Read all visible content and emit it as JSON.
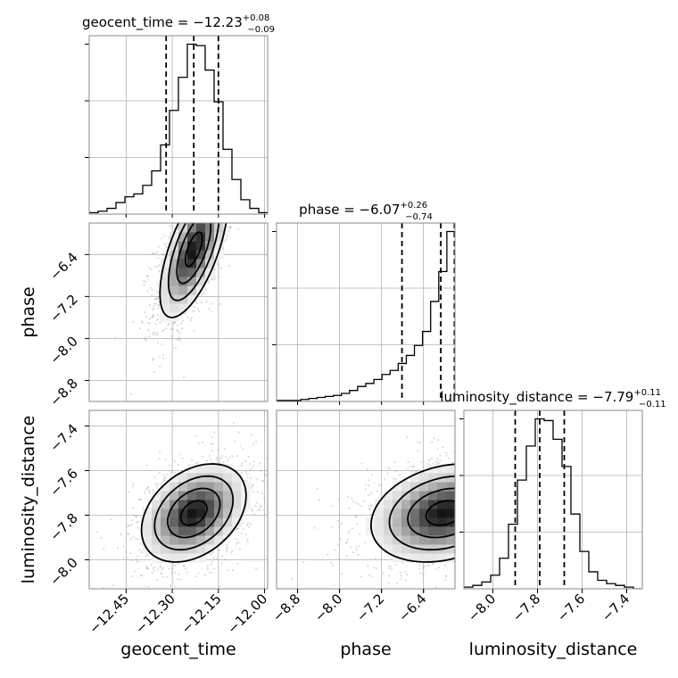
{
  "chart_data": {
    "type": "corner",
    "parameters": [
      {
        "name": "geocent_time",
        "median": -12.23,
        "plus": "+0.08",
        "minus": "−0.09",
        "median_label": "−12.23",
        "range": [
          -12.57,
          -11.99
        ],
        "ticks": [
          -12.45,
          -12.3,
          -12.15,
          -12.0
        ],
        "tick_labels": [
          "−12.45",
          "−12.30",
          "−12.15",
          "−12.00"
        ],
        "quantiles": [
          -12.32,
          -12.23,
          -12.15
        ]
      },
      {
        "name": "phase",
        "median": -6.07,
        "plus": "+0.26",
        "minus": "−0.74",
        "median_label": "−6.07",
        "range": [
          -9.2,
          -5.8
        ],
        "ticks": [
          -8.8,
          -8.0,
          -7.2,
          -6.4
        ],
        "tick_labels": [
          "−8.8",
          "−8.0",
          "−7.2",
          "−6.4"
        ],
        "quantiles": [
          -6.81,
          -6.07,
          -5.81
        ]
      },
      {
        "name": "luminosity_distance",
        "median": -7.79,
        "plus": "+0.11",
        "minus": "−0.11",
        "median_label": "−7.79",
        "range": [
          -8.13,
          -7.33
        ],
        "ticks": [
          -8.0,
          -7.8,
          -7.6,
          -7.4
        ],
        "tick_labels": [
          "−8.0",
          "−7.8",
          "−7.6",
          "−7.4"
        ],
        "quantiles": [
          -7.9,
          -7.79,
          -7.68
        ]
      }
    ],
    "histograms": [
      {
        "param": "geocent_time",
        "bin_edges_range": [
          -12.57,
          -11.99
        ],
        "bin_count": 20,
        "counts": [
          1,
          2,
          4,
          8,
          12,
          14,
          20,
          30,
          48,
          72,
          95,
          118,
          117,
          100,
          78,
          45,
          24,
          10,
          4,
          1
        ]
      },
      {
        "param": "phase",
        "bin_edges_range": [
          -9.2,
          -5.8
        ],
        "bin_count": 22,
        "counts": [
          1,
          1,
          1,
          2,
          3,
          4,
          5,
          6,
          8,
          11,
          15,
          18,
          22,
          27,
          31,
          38,
          46,
          56,
          70,
          100,
          130,
          170
        ]
      },
      {
        "param": "luminosity_distance",
        "bin_edges_range": [
          -8.13,
          -7.33
        ],
        "bin_count": 20,
        "counts": [
          1,
          2,
          4,
          8,
          18,
          38,
          64,
          84,
          100,
          99,
          88,
          72,
          44,
          22,
          10,
          5,
          3,
          2,
          1,
          0
        ]
      }
    ],
    "joint_panels": [
      {
        "x": "geocent_time",
        "y": "phase",
        "mean": [
          -12.23,
          -6.3
        ],
        "sd": [
          0.055,
          0.65
        ],
        "corr": 0.65
      },
      {
        "x": "geocent_time",
        "y": "luminosity_distance",
        "mean": [
          -12.23,
          -7.79
        ],
        "sd": [
          0.085,
          0.11
        ],
        "corr": 0.35
      },
      {
        "x": "phase",
        "y": "luminosity_distance",
        "mean": [
          -6.0,
          -7.79
        ],
        "sd": [
          0.7,
          0.11
        ],
        "corr": 0.25
      }
    ],
    "grid": true,
    "style": {
      "line": "#000000",
      "grid": "#b0b0b0",
      "frame": "#888888",
      "scatter": "#9a9a9a"
    }
  }
}
